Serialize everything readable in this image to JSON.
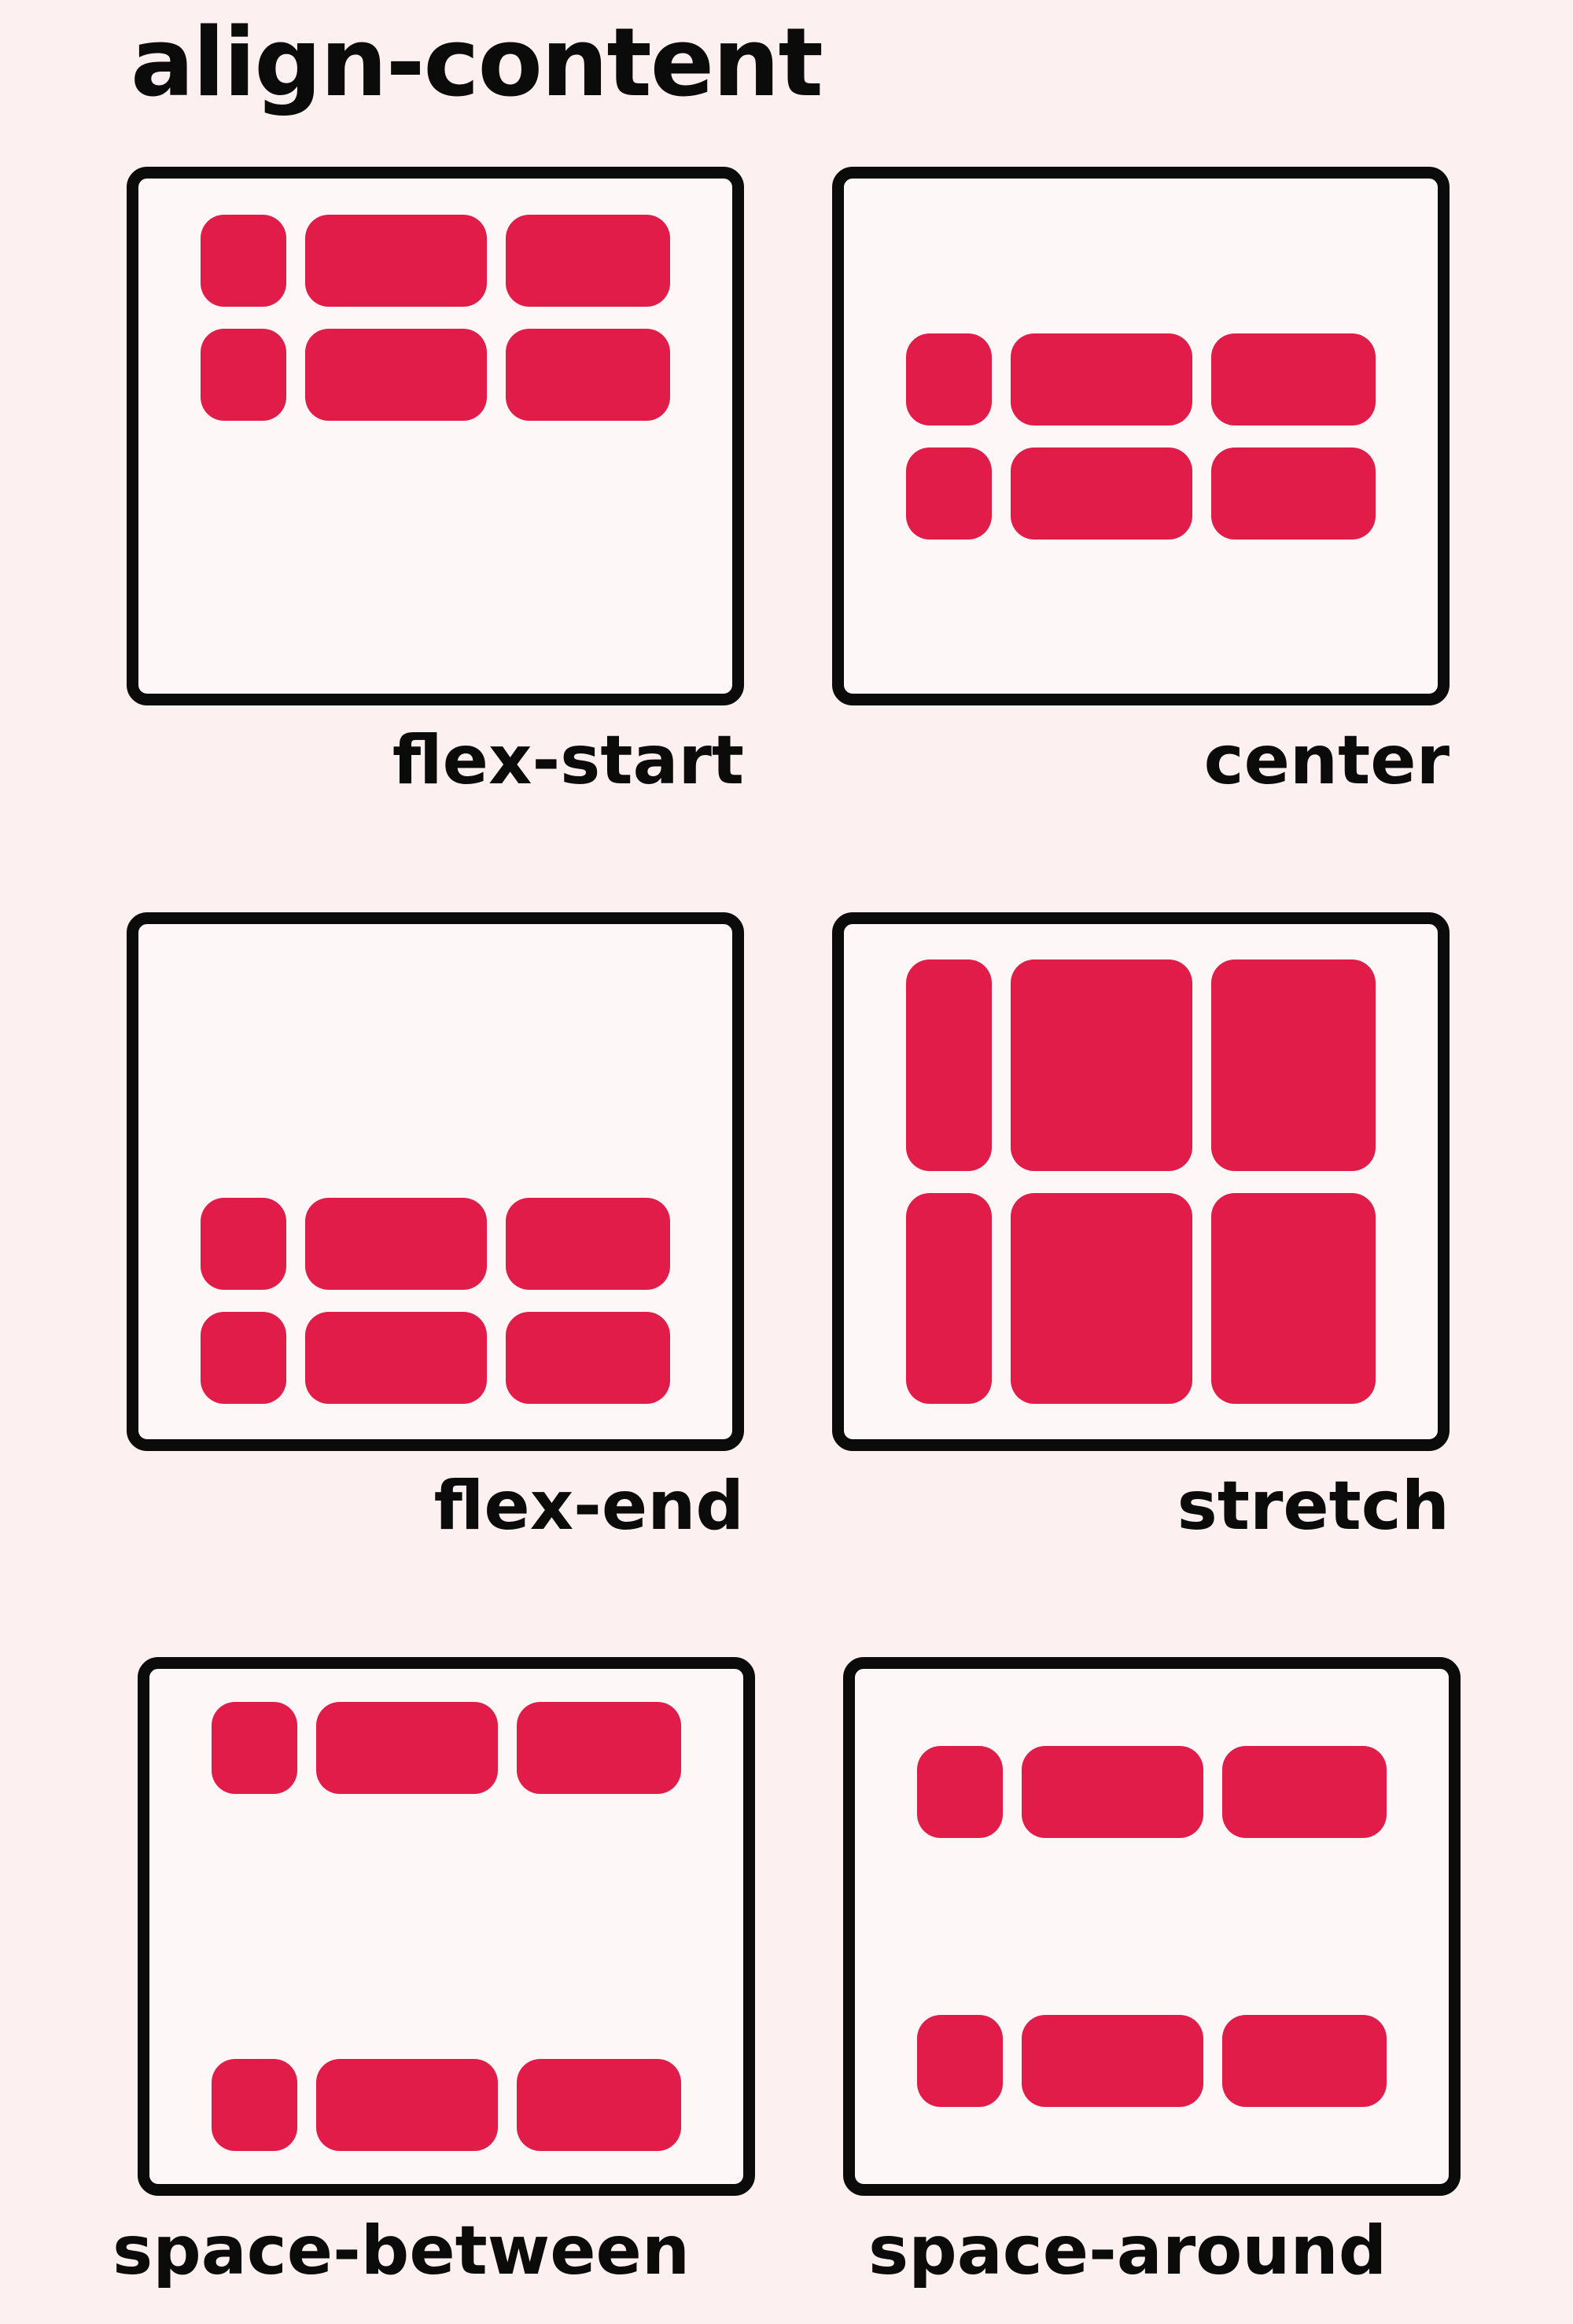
{
  "title": "align-content",
  "colors": {
    "item": "#e11c48",
    "border": "#0b0b0b",
    "background": "#fdf0f0",
    "panel": "#fdf7f7"
  },
  "panels": [
    {
      "label": "flex-start"
    },
    {
      "label": "center"
    },
    {
      "label": "flex-end"
    },
    {
      "label": "stretch"
    },
    {
      "label": "space-between"
    },
    {
      "label": "space-around"
    }
  ]
}
